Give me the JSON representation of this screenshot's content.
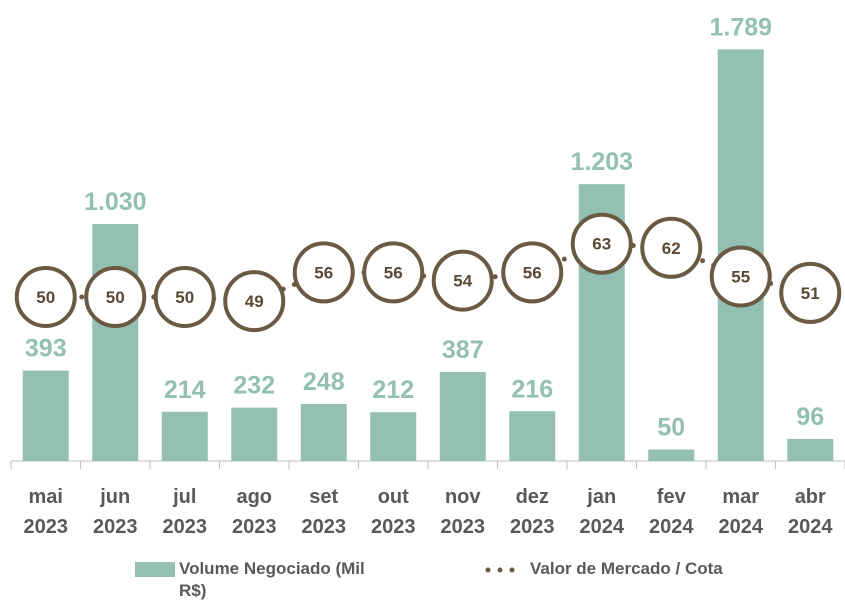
{
  "chart_data": {
    "type": "bar",
    "categories": [
      "mai 2023",
      "jun 2023",
      "jul 2023",
      "ago 2023",
      "set 2023",
      "out 2023",
      "nov 2023",
      "dez 2023",
      "jan 2024",
      "fev 2024",
      "mar 2024",
      "abr 2024"
    ],
    "series": [
      {
        "name": "Volume Negociado (Mil R$)",
        "type": "bar",
        "color": "#93c0b3",
        "values": [
          393,
          1030,
          214,
          232,
          248,
          212,
          387,
          216,
          1203,
          50,
          1789,
          96
        ],
        "value_labels": [
          "393",
          "1.030",
          "214",
          "232",
          "248",
          "212",
          "387",
          "216",
          "1.203",
          "50",
          "1.789",
          "96"
        ]
      },
      {
        "name": "Valor de Mercado / Cota",
        "type": "line",
        "color": "#6b5a43",
        "axis": "y2",
        "values": [
          50,
          50,
          50,
          49,
          56,
          56,
          54,
          56,
          63,
          62,
          55,
          51
        ]
      }
    ],
    "ylim": [
      0,
      1960
    ],
    "y2lim": [
      10,
      120
    ],
    "legend": "bottom"
  }
}
